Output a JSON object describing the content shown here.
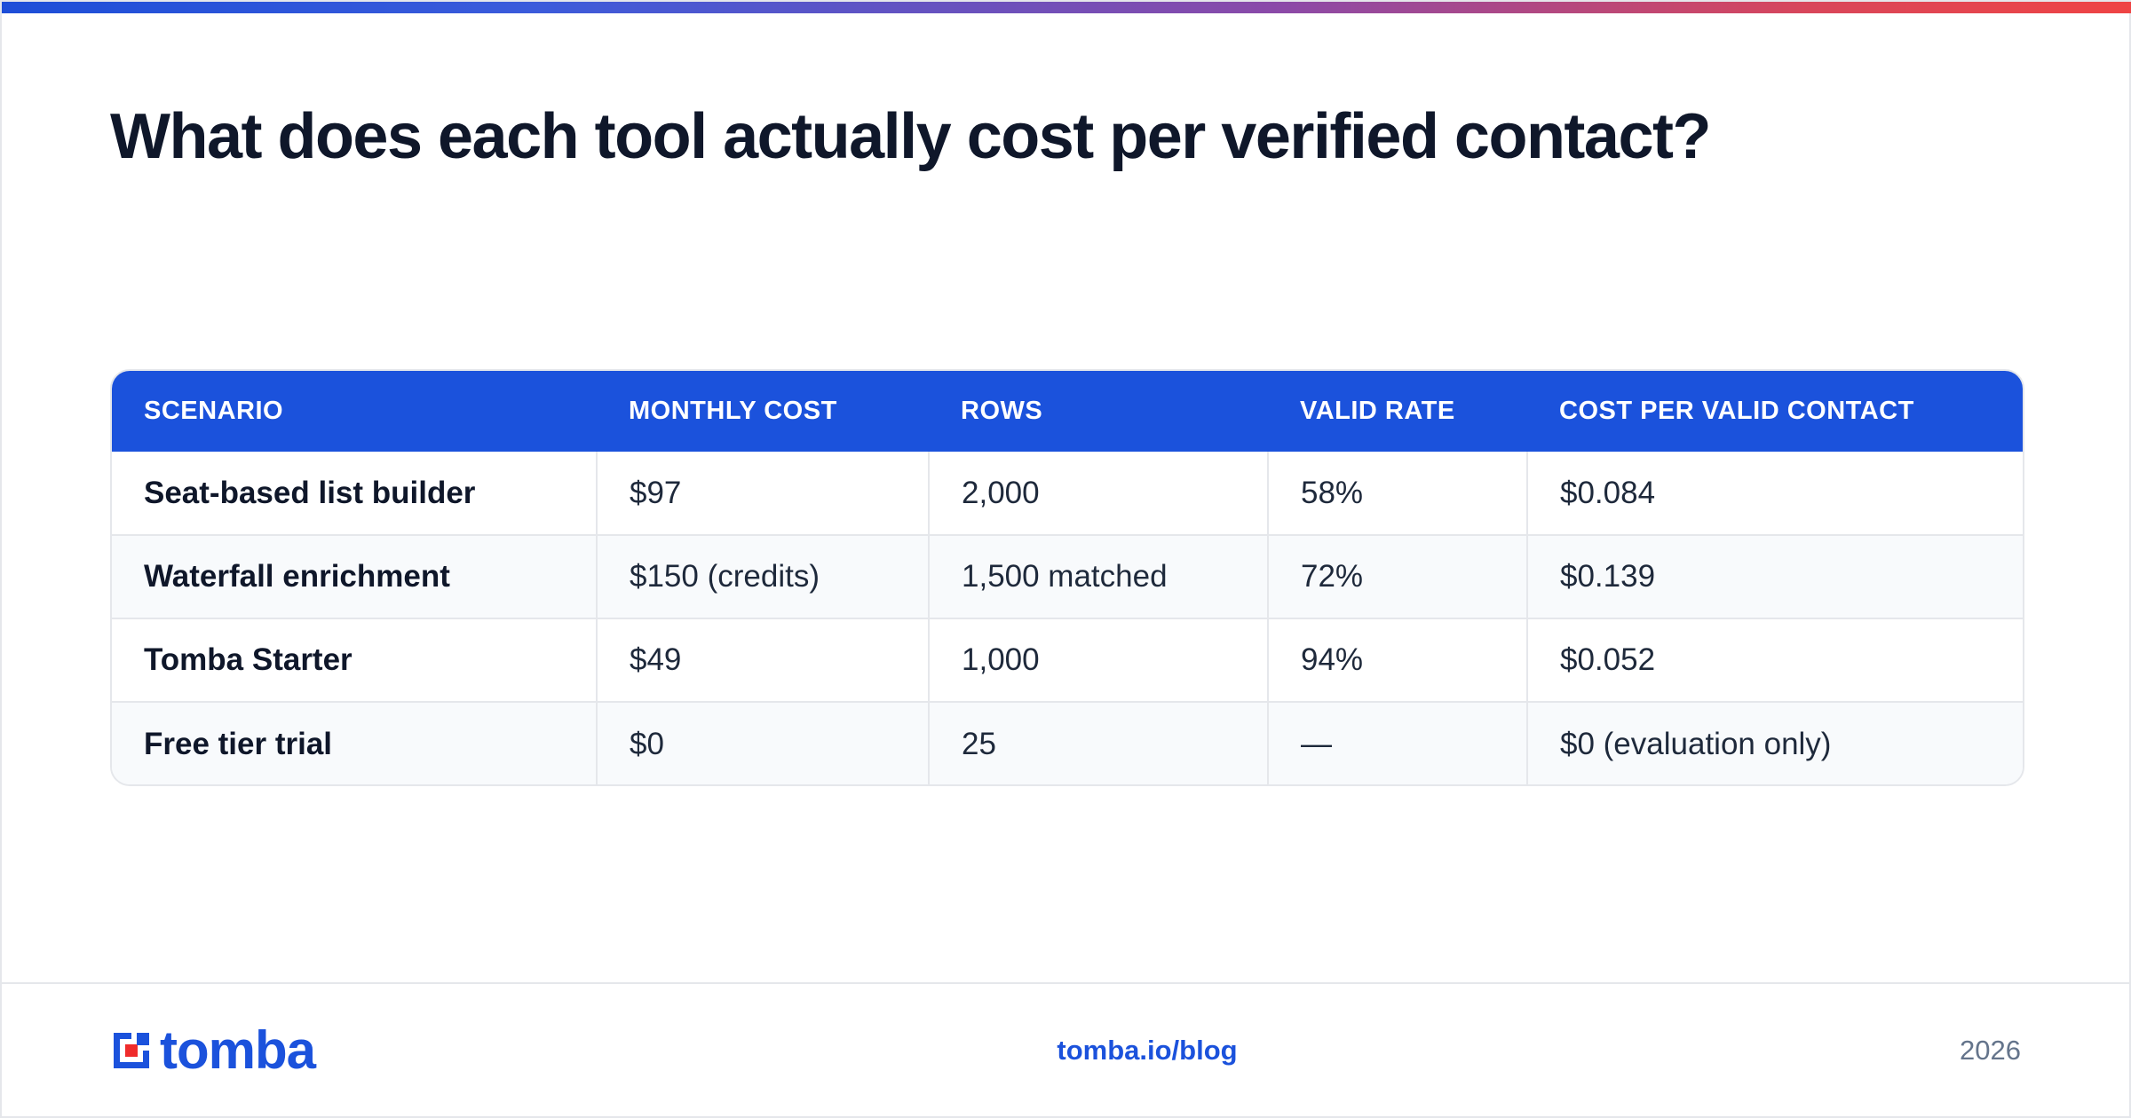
{
  "title": "What does each tool actually cost per verified contact?",
  "table": {
    "headers": [
      "SCENARIO",
      "MONTHLY COST",
      "ROWS",
      "VALID RATE",
      "COST PER VALID CONTACT"
    ],
    "rows": [
      [
        "Seat-based list builder",
        "$97",
        "2,000",
        "58%",
        "$0.084"
      ],
      [
        "Waterfall enrichment",
        "$150 (credits)",
        "1,500 matched",
        "72%",
        "$0.139"
      ],
      [
        "Tomba Starter",
        "$49",
        "1,000",
        "94%",
        "$0.052"
      ],
      [
        "Free tier trial",
        "$0",
        "25",
        "—",
        "$0 (evaluation only)"
      ]
    ]
  },
  "footer": {
    "logo_text": "tomba",
    "logo_icon": "tomba-logo-mark",
    "link": "tomba.io/blog",
    "year": "2026"
  },
  "colors": {
    "accent": "#1b52dc",
    "logo_red": "#ef2b2b",
    "gradient_start": "#1d4ed8",
    "gradient_end": "#ef4444"
  }
}
